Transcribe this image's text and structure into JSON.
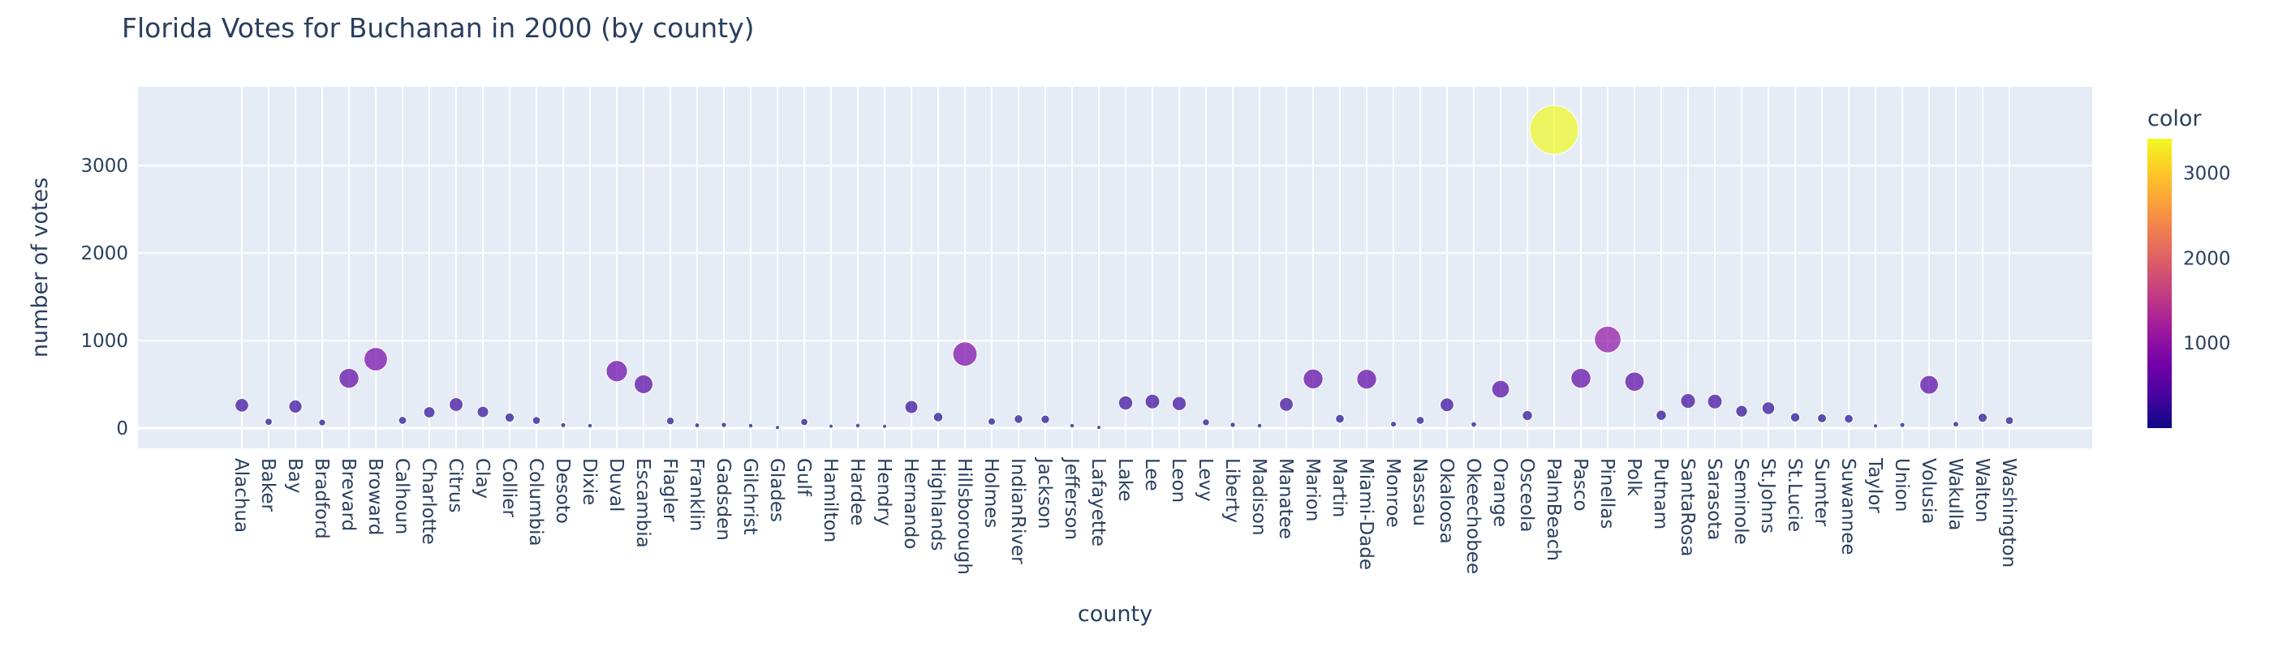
{
  "chart_data": {
    "type": "scatter",
    "title": "Florida Votes for Buchanan in 2000 (by county)",
    "xlabel": "county",
    "ylabel": "number of votes",
    "ylim": [
      -230,
      3900
    ],
    "yticks": [
      0,
      1000,
      2000,
      3000
    ],
    "grid": true,
    "legend": "colorbar-right",
    "colorbar": {
      "title": "color",
      "range": [
        0,
        3407
      ],
      "ticks": [
        1000,
        2000,
        3000
      ]
    },
    "colors": {
      "plot_bg": "#e5ecf6",
      "grid": "#ffffff",
      "marker_line": "#ffffff",
      "scale": [
        "#0d0887",
        "#46039f",
        "#7201a8",
        "#9c179e",
        "#bd3786",
        "#d8576b",
        "#ed7953",
        "#fb9f3a",
        "#fdca26",
        "#f0f921"
      ]
    },
    "categories": [
      "Alachua",
      "Baker",
      "Bay",
      "Bradford",
      "Brevard",
      "Broward",
      "Calhoun",
      "Charlotte",
      "Citrus",
      "Clay",
      "Collier",
      "Columbia",
      "Desoto",
      "Dixie",
      "Duval",
      "Escambia",
      "Flagler",
      "Franklin",
      "Gadsden",
      "Gilchrist",
      "Glades",
      "Gulf",
      "Hamilton",
      "Hardee",
      "Hendry",
      "Hernando",
      "Highlands",
      "Hillsborough",
      "Holmes",
      "IndianRiver",
      "Jackson",
      "Jefferson",
      "Lafayette",
      "Lake",
      "Lee",
      "Leon",
      "Levy",
      "Liberty",
      "Madison",
      "Manatee",
      "Marion",
      "Martin",
      "Miami-Dade",
      "Monroe",
      "Nassau",
      "Okaloosa",
      "Okeechobee",
      "Orange",
      "Osceola",
      "PalmBeach",
      "Pasco",
      "Pinellas",
      "Polk",
      "Putnam",
      "SantaRosa",
      "Sarasota",
      "Seminole",
      "St.Johns",
      "St.Lucie",
      "Sumter",
      "Suwannee",
      "Taylor",
      "Union",
      "Volusia",
      "Wakulla",
      "Walton",
      "Washington"
    ],
    "values": [
      262,
      73,
      248,
      65,
      570,
      788,
      90,
      182,
      270,
      186,
      122,
      89,
      36,
      29,
      652,
      502,
      83,
      33,
      38,
      29,
      9,
      71,
      23,
      30,
      22,
      242,
      127,
      847,
      76,
      105,
      102,
      29,
      10,
      289,
      305,
      282,
      67,
      39,
      29,
      272,
      563,
      108,
      560,
      47,
      90,
      267,
      43,
      446,
      145,
      3407,
      570,
      1013,
      532,
      148,
      311,
      305,
      194,
      229,
      124,
      114,
      108,
      27,
      37,
      496,
      46,
      120,
      88
    ]
  }
}
